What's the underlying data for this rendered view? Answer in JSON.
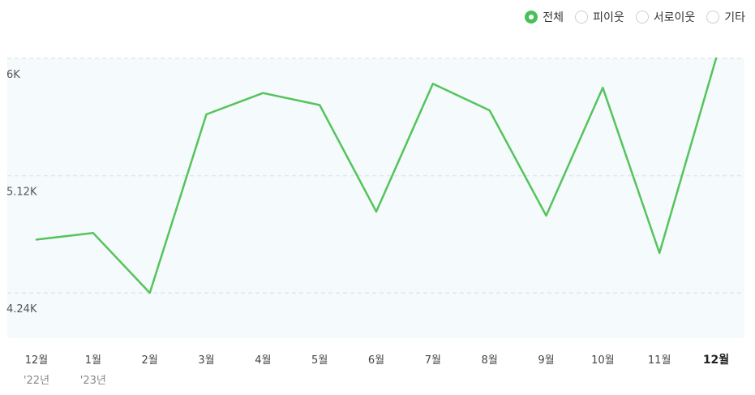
{
  "legend": {
    "options": [
      {
        "label": "전체",
        "checked": true
      },
      {
        "label": "피이웃",
        "checked": false
      },
      {
        "label": "서로이웃",
        "checked": false
      },
      {
        "label": "기타",
        "checked": false
      }
    ]
  },
  "colors": {
    "line": "#55c45a",
    "plot_bg": "#f5fafd",
    "grid": "#dfe8ec",
    "radio_on": "#48c05a"
  },
  "chart_data": {
    "type": "line",
    "categories": [
      "12월",
      "1월",
      "2월",
      "3월",
      "4월",
      "5월",
      "6월",
      "7월",
      "8월",
      "9월",
      "10월",
      "11월",
      "12월"
    ],
    "category_sublabels": [
      "'22년",
      "'23년",
      "",
      "",
      "",
      "",
      "",
      "",
      "",
      "",
      "",
      "",
      ""
    ],
    "highlight_category": 12,
    "values": [
      4.64,
      4.69,
      4.24,
      5.58,
      5.74,
      5.65,
      4.85,
      5.81,
      5.61,
      4.82,
      5.78,
      4.54,
      6.0
    ],
    "y_ticks": [
      {
        "value": 6.0,
        "label": "6K"
      },
      {
        "value": 5.12,
        "label": "5.12K"
      },
      {
        "value": 4.24,
        "label": "4.24K"
      }
    ],
    "ylim": [
      3.9,
      6.0
    ],
    "grid": true,
    "legend_position": "top-right"
  }
}
